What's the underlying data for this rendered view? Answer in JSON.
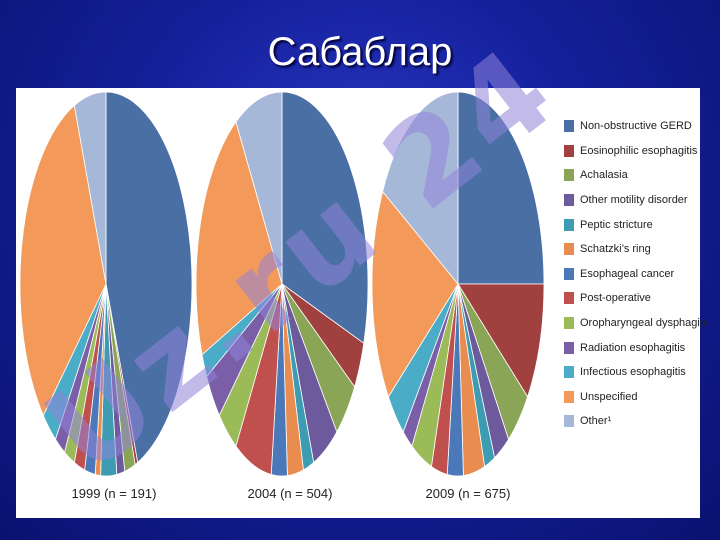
{
  "slide": {
    "title": "Сабаблар"
  },
  "chart_data": {
    "type": "pie",
    "categories": [
      "Non-obstructive GERD",
      "Eosinophilic esophagitis",
      "Achalasia",
      "Other motility disorder",
      "Peptic stricture",
      "Schatzki's ring",
      "Esophageal cancer",
      "Post-operative",
      "Oropharyngeal dysphagia",
      "Radiation esophagitis",
      "Infectious esophagitis",
      "Unspecified",
      "Other"
    ],
    "colors": [
      "#4a6fa5",
      "#a0403f",
      "#8aa556",
      "#6c5a9c",
      "#3d9bb2",
      "#e88d4f",
      "#4a78b8",
      "#c0504d",
      "#9bbb59",
      "#7a5ea8",
      "#4aacc6",
      "#f39a5a",
      "#a6b8d8"
    ],
    "legend_position": "right",
    "charts": [
      {
        "caption": "1999 (n = 191)",
        "values": [
          44,
          0.5,
          2,
          1.5,
          3,
          1,
          2,
          2,
          2,
          2,
          3,
          31,
          6
        ]
      },
      {
        "caption": "2004 (n = 504)",
        "values": [
          30,
          4,
          5,
          5,
          2,
          3,
          3,
          7,
          4,
          4,
          2,
          22,
          9
        ]
      },
      {
        "caption": "2009 (n = 675)",
        "values": [
          25,
          10,
          5,
          3,
          2,
          4,
          3,
          3,
          4,
          2,
          4,
          18,
          17
        ]
      }
    ],
    "legend_labels": [
      "Non-obstructive GERD",
      "Eosinophilic esophagitis",
      "Achalasia",
      "Other motility disorder",
      "Peptic stricture",
      "Schatzki’s ring",
      "Esophageal cancer",
      "Post-operative",
      "Oropharyngeal dysphagia",
      "Radiation esophagitis",
      "Infectious esophagitis",
      "Unspecified",
      "Other¹"
    ]
  },
  "watermark": {
    "text": "Uz.ru 24"
  }
}
